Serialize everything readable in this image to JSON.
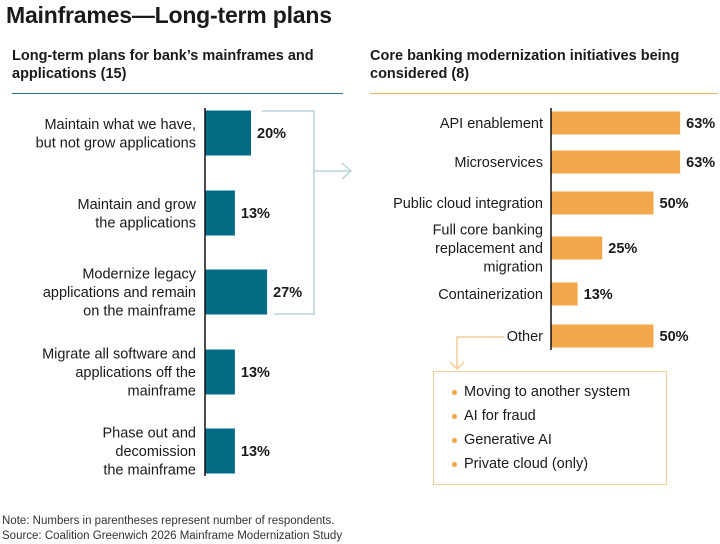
{
  "title": "Mainframes—Long-term plans",
  "note": "Note: Numbers in parentheses represent number of respondents.",
  "source": "Source: Coalition Greenwich 2026 Mainframe Modernization Study",
  "colors": {
    "left_bar": "#046b84",
    "right_bar": "#f2a74b",
    "bracket": "#b9d3dc",
    "other_box": "#f3cc98"
  },
  "chart_data": [
    {
      "type": "bar",
      "orientation": "horizontal",
      "title": "Long-term plans for bank’s mainframes and applications (15)",
      "categories": [
        [
          "Maintain what we have,",
          "but not grow applications"
        ],
        [
          "Maintain and grow",
          "the applications"
        ],
        [
          "Modernize legacy",
          "applications and remain",
          "on the mainframe"
        ],
        [
          "Migrate all software and",
          "applications off the",
          "mainframe"
        ],
        [
          "Phase out and",
          "decomission",
          "the mainframe"
        ]
      ],
      "values": [
        20,
        13,
        27,
        13,
        13
      ],
      "value_labels": [
        "20%",
        "13%",
        "27%",
        "13%",
        "13%"
      ],
      "unit": "%"
    },
    {
      "type": "bar",
      "orientation": "horizontal",
      "title": "Core banking modernization initiatives being considered (8)",
      "categories": [
        [
          "API enablement"
        ],
        [
          "Microservices"
        ],
        [
          "Public cloud integration"
        ],
        [
          "Full core banking",
          "replacement and",
          "migration"
        ],
        [
          "Containerization"
        ],
        [
          "Other"
        ]
      ],
      "values": [
        63,
        63,
        50,
        25,
        13,
        50
      ],
      "value_labels": [
        "63%",
        "63%",
        "50%",
        "25%",
        "13%",
        "50%"
      ],
      "unit": "%",
      "other_details": [
        "Moving to another system",
        "AI for fraud",
        "Generative AI",
        "Private cloud (only)"
      ]
    }
  ]
}
